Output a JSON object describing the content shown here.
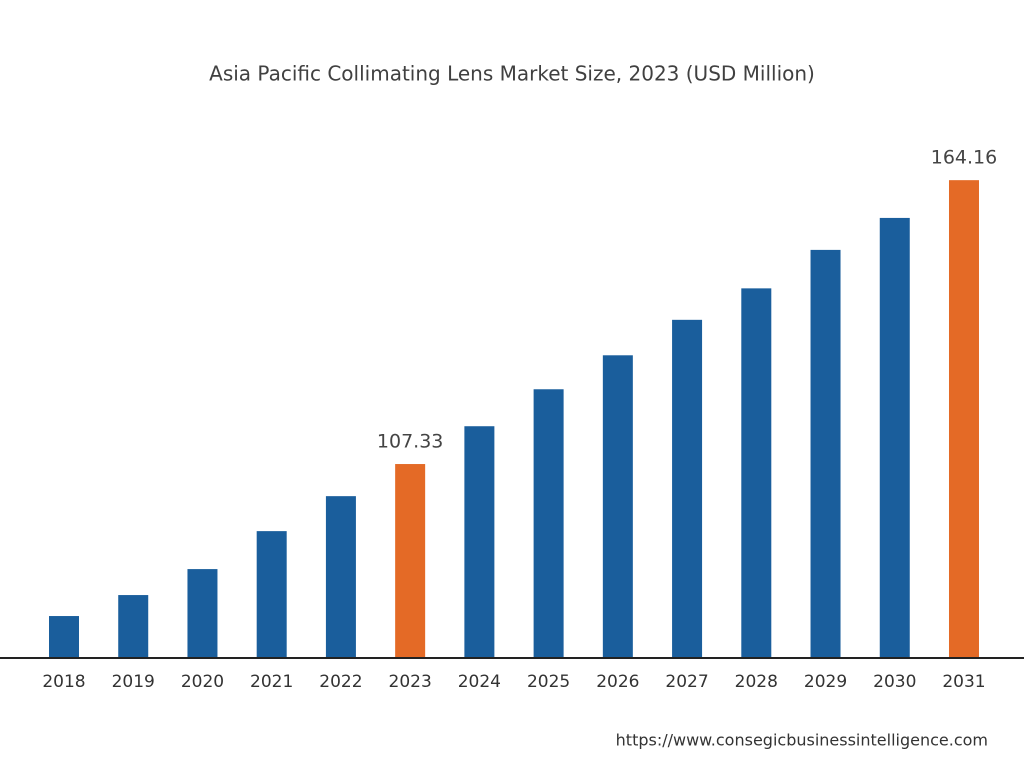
{
  "chart_data": {
    "type": "bar",
    "title": "Asia Pacific Collimating Lens Market Size, 2023 (USD Million)",
    "categories": [
      "2018",
      "2019",
      "2020",
      "2021",
      "2022",
      "2023",
      "2024",
      "2025",
      "2026",
      "2027",
      "2028",
      "2029",
      "2030",
      "2031"
    ],
    "values": [
      76.9,
      81.1,
      86.3,
      93.9,
      100.9,
      107.33,
      114.9,
      122.3,
      129.1,
      136.2,
      142.5,
      150.2,
      156.6,
      164.16
    ],
    "value_labels": [
      null,
      null,
      null,
      null,
      null,
      "107.33",
      null,
      null,
      null,
      null,
      null,
      null,
      null,
      "164.16"
    ],
    "colors": [
      "#1a5e9c",
      "#1a5e9c",
      "#1a5e9c",
      "#1a5e9c",
      "#1a5e9c",
      "#e46a26",
      "#1a5e9c",
      "#1a5e9c",
      "#1a5e9c",
      "#1a5e9c",
      "#1a5e9c",
      "#1a5e9c",
      "#1a5e9c",
      "#e46a26"
    ],
    "ylim": [
      68.5,
      172.2
    ],
    "source": "https://www.consegicbusinessintelligence.com"
  }
}
